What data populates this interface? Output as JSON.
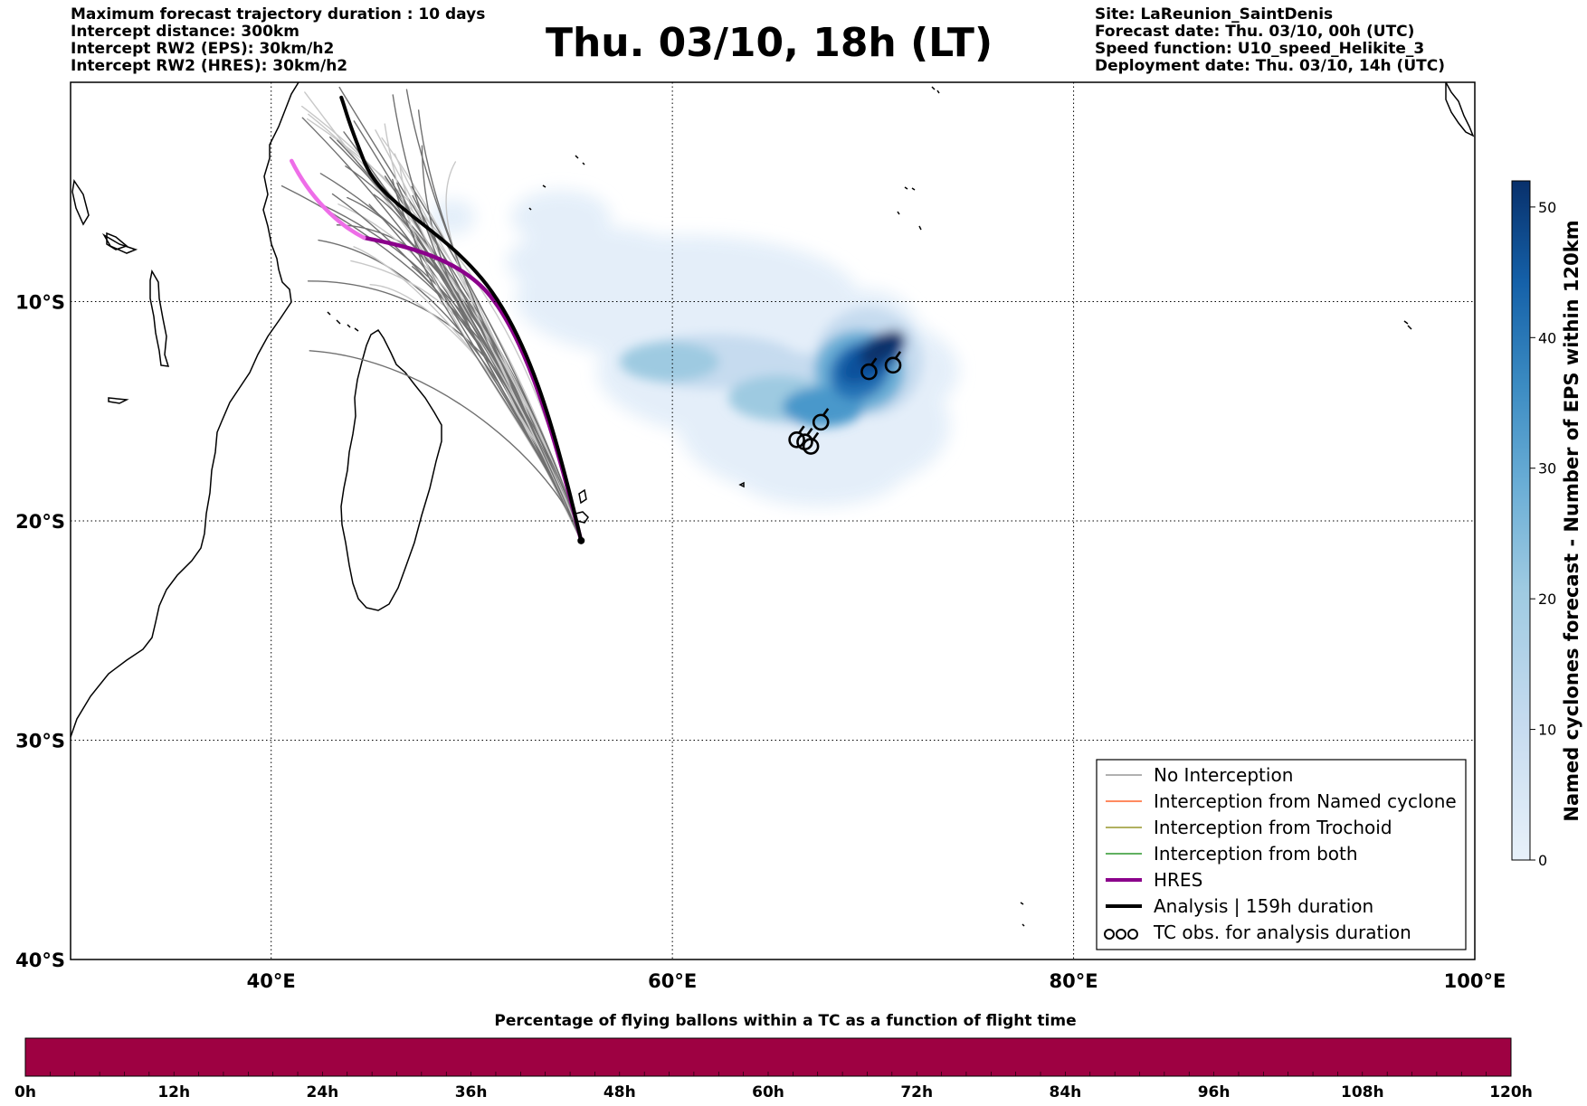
{
  "header_left": [
    "Maximum forecast trajectory duration : 10 days",
    "Intercept distance: 300km",
    "Intercept RW2 (EPS):  30km/h2",
    "Intercept RW2 (HRES): 30km/h2"
  ],
  "header_right": [
    "Site: LaReunion_SaintDenis",
    "Forecast date: Thu. 03/10, 00h (UTC)",
    "Speed function: U10_speed_Helikite_3",
    "Deployment date: Thu. 03/10, 14h (UTC)"
  ],
  "title": "Thu. 03/10, 18h (LT)",
  "map": {
    "lon_range": [
      30,
      100
    ],
    "lat_range": [
      -40,
      0
    ],
    "lon_ticks": [
      {
        "value": 40,
        "label": "40°E"
      },
      {
        "value": 60,
        "label": "60°E"
      },
      {
        "value": 80,
        "label": "80°E"
      },
      {
        "value": 100,
        "label": "100°E"
      }
    ],
    "lat_ticks": [
      {
        "value": -10,
        "label": "10°S"
      },
      {
        "value": -20,
        "label": "20°S"
      },
      {
        "value": -30,
        "label": "30°S"
      },
      {
        "value": -40,
        "label": "40°S"
      }
    ],
    "gridlines": "dotted",
    "site": {
      "lon": 55.45,
      "lat": -20.9
    }
  },
  "legend": {
    "placement": "bottom-right",
    "items": [
      {
        "label": "No Interception",
        "color": "#808080",
        "style": "thin"
      },
      {
        "label": "Interception from Named cyclone",
        "color": "#ff4500",
        "style": "thin"
      },
      {
        "label": "Interception from Trochoid",
        "color": "#808000",
        "style": "thin"
      },
      {
        "label": "Interception from both",
        "color": "#008000",
        "style": "thin"
      },
      {
        "label": "HRES",
        "color": "#8b008b",
        "style": "thick"
      },
      {
        "label": "Analysis | 159h duration",
        "color": "#000000",
        "style": "thick"
      },
      {
        "label": "TC obs. for analysis duration",
        "color": "#000000",
        "style": "cyclone-symbols"
      }
    ]
  },
  "colorbar": {
    "label": "Named cyclones forecast - Number of EPS within 120km",
    "min": 0,
    "max": 52,
    "ticks": [
      "0",
      "10",
      "20",
      "30",
      "40",
      "50"
    ],
    "colors": [
      "#e7f0fa",
      "#c6dbef",
      "#9ecae1",
      "#6baed6",
      "#3f8fc5",
      "#2171b5",
      "#08519c",
      "#08306b"
    ]
  },
  "bottom_bar": {
    "title": "Percentage of flying ballons within a TC as a function of flight time",
    "fill_color": "#9e0142",
    "ticks": [
      "0h",
      "12h",
      "24h",
      "36h",
      "48h",
      "60h",
      "72h",
      "84h",
      "96h",
      "108h",
      "120h"
    ]
  },
  "tc_obs": [
    {
      "lon": 71.0,
      "lat": -12.9
    },
    {
      "lon": 69.8,
      "lat": -13.2
    },
    {
      "lon": 67.4,
      "lat": -15.5
    },
    {
      "lon": 66.9,
      "lat": -16.6
    },
    {
      "lon": 66.6,
      "lat": -16.4
    },
    {
      "lon": 66.2,
      "lat": -16.3
    }
  ]
}
